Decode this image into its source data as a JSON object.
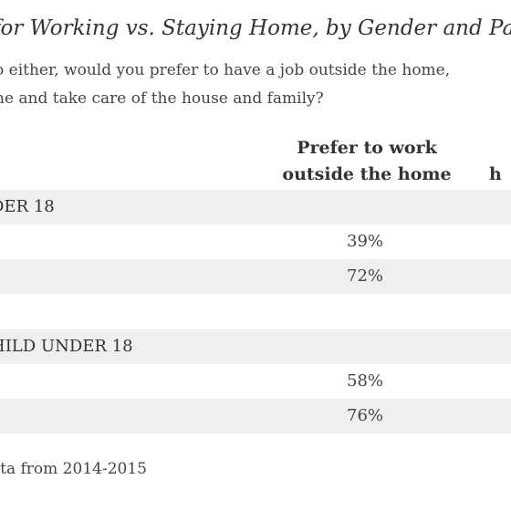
{
  "title": "for Working vs. Staying Home, by Gender and Pa",
  "question": {
    "line1": "o either, would you prefer to have a job outside the home,",
    "line2": "ne and take care of the house and family?"
  },
  "columns": {
    "col1_line1": "Prefer to work",
    "col1_line2": "outside the home",
    "col2_line2": "h"
  },
  "sections": [
    {
      "header": "DER 18",
      "rows": [
        {
          "label": "",
          "value": "39%"
        },
        {
          "label": "",
          "value": "72%"
        }
      ]
    },
    {
      "header": "HILD UNDER 18",
      "rows": [
        {
          "label": "",
          "value": "58%"
        },
        {
          "label": "",
          "value": "76%"
        }
      ]
    }
  ],
  "footnote": "ata from 2014-2015"
}
